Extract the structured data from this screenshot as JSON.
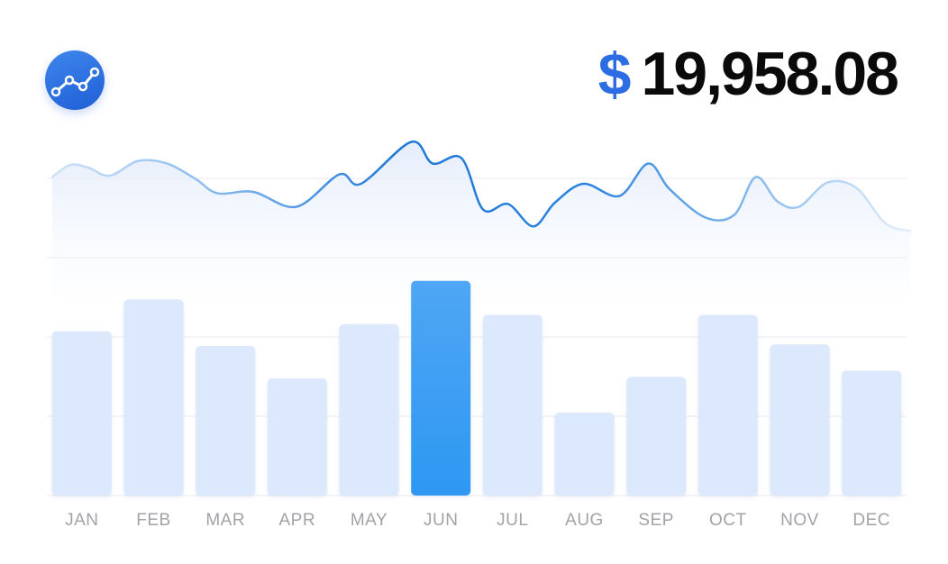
{
  "header": {
    "icon": "trend-line-icon",
    "currency_symbol": "$",
    "total_amount": "19,958.08"
  },
  "colors": {
    "accent": "#2d6de3",
    "bar_highlight": "#359ef3",
    "bar_default": "#dce8fb",
    "line": "#2b83de",
    "label": "#a2a2a8"
  },
  "chart_data": {
    "type": "bar",
    "categories": [
      "JAN",
      "FEB",
      "MAR",
      "APR",
      "MAY",
      "JUN",
      "JUL",
      "AUG",
      "SEP",
      "OCT",
      "NOV",
      "DEC"
    ],
    "values": [
      212,
      253,
      193,
      151,
      221,
      277,
      233,
      107,
      153,
      233,
      195,
      161
    ],
    "ylim": [
      0,
      320
    ],
    "highlight_index": 5,
    "grid": true,
    "overlay_line": {
      "type": "area",
      "x": [
        0,
        0.25,
        0.5,
        0.8,
        1.2,
        1.6,
        2.0,
        2.3,
        2.8,
        3.4,
        4.0,
        4.3,
        5.0,
        5.3,
        5.7,
        6.0,
        6.35,
        6.7,
        7.0,
        7.4,
        7.9,
        8.3,
        8.6,
        9.1,
        9.5,
        9.8,
        10.1,
        10.4,
        10.8,
        11.2,
        11.6,
        11.95
      ],
      "y": [
        338,
        356,
        352,
        340,
        362,
        358,
        335,
        314,
        316,
        294,
        342,
        328,
        390,
        358,
        366,
        290,
        298,
        265,
        300,
        328,
        310,
        358,
        320,
        278,
        282,
        338,
        302,
        294,
        330,
        322,
        270,
        258
      ],
      "ylim": [
        200,
        400
      ]
    }
  }
}
